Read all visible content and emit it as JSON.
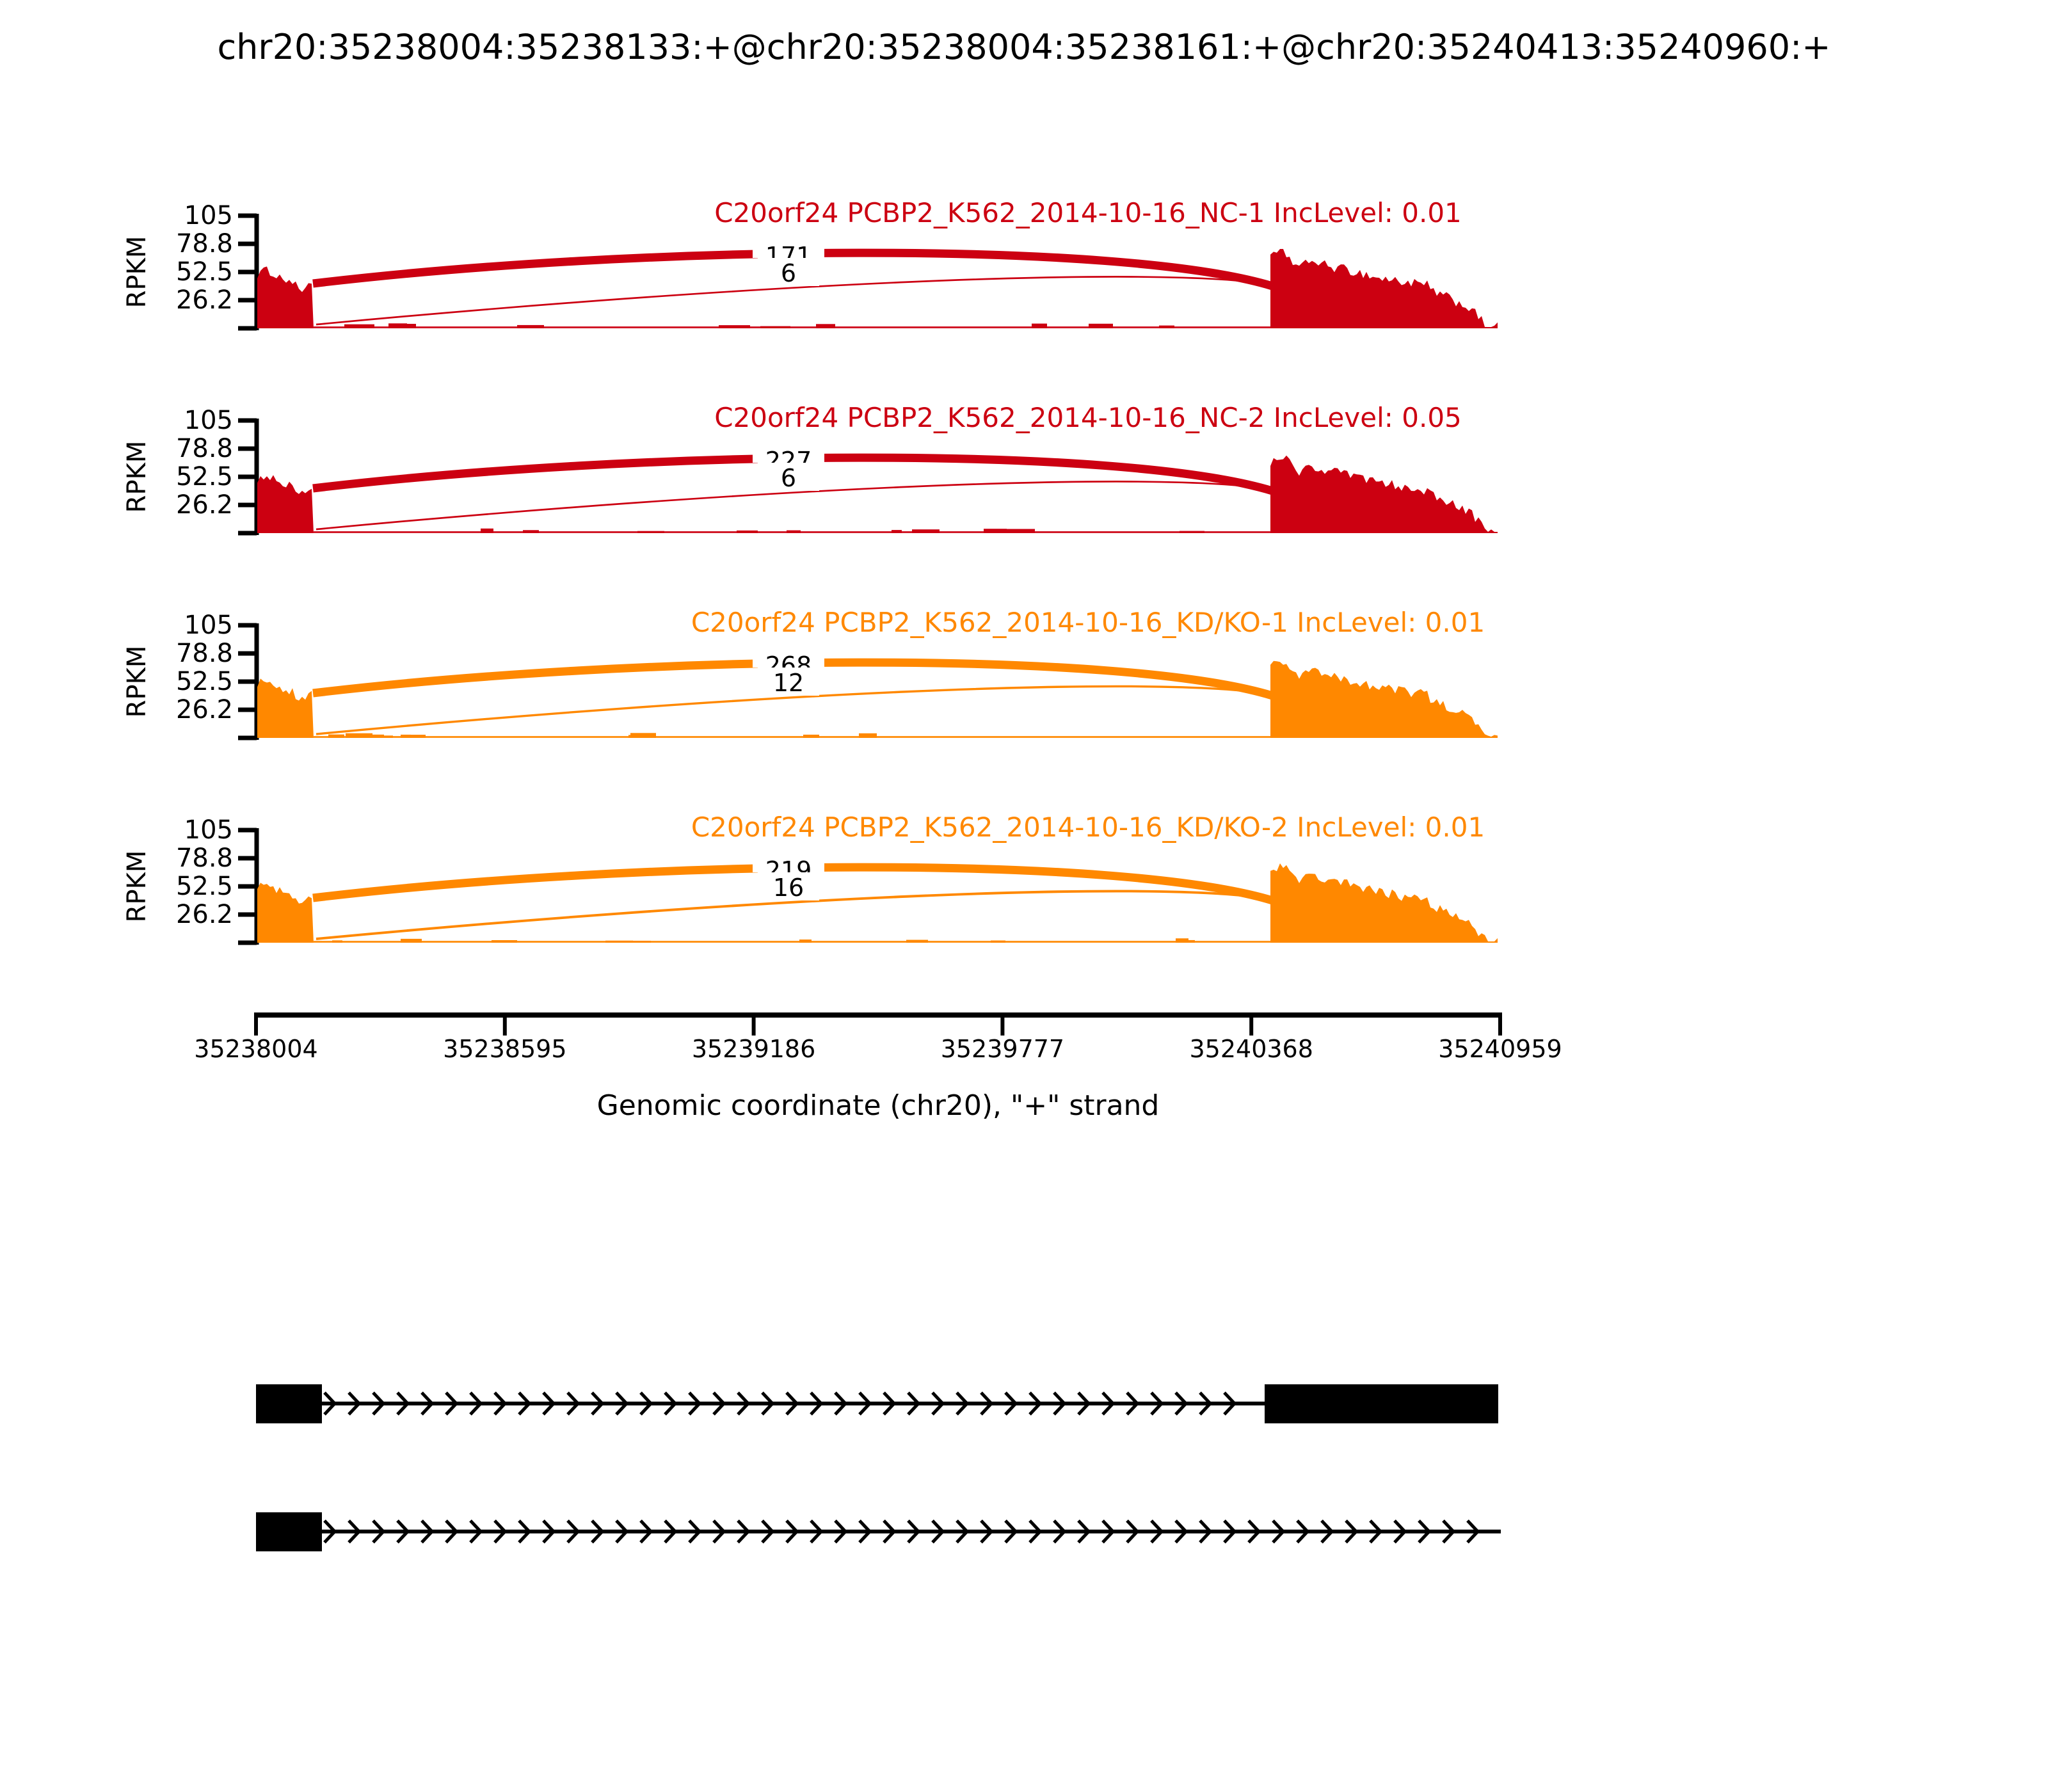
{
  "main_title": "chr20:35238004:35238133:+@chr20:35238004:35238161:+@chr20:35240413:35240960:+",
  "y_axis": {
    "label": "RPKM",
    "ticks": [
      "105",
      "78.8",
      "52.5",
      "26.2"
    ]
  },
  "x_axis": {
    "ticks": [
      "35238004",
      "35238595",
      "35239186",
      "35239777",
      "35240368",
      "35240959"
    ],
    "label": "Genomic coordinate (chr20), \"+\" strand"
  },
  "colors": {
    "nc": "#CC0011",
    "kd": "#FF8800",
    "annotation": "#000000"
  },
  "tracks": [
    {
      "title": "C20orf24 PCBP2_K562_2014-10-16_NC-1 IncLevel: 0.01",
      "color_key": "nc",
      "junction_top": "171",
      "junction_bottom": "6"
    },
    {
      "title": "C20orf24 PCBP2_K562_2014-10-16_NC-2 IncLevel: 0.05",
      "color_key": "nc",
      "junction_top": "227",
      "junction_bottom": "6"
    },
    {
      "title": "C20orf24 PCBP2_K562_2014-10-16_KD/KO-1 IncLevel: 0.01",
      "color_key": "kd",
      "junction_top": "268",
      "junction_bottom": "12"
    },
    {
      "title": "C20orf24 PCBP2_K562_2014-10-16_KD/KO-2 IncLevel: 0.01",
      "color_key": "kd",
      "junction_top": "219",
      "junction_bottom": "16"
    }
  ],
  "transcripts": [
    {
      "exons": [
        [
          35238004,
          35238161
        ],
        [
          35240413,
          35240960
        ]
      ],
      "strand": "+"
    },
    {
      "exons": [
        [
          35238004,
          35238161
        ]
      ],
      "line_to": 35240960,
      "strand": "+"
    }
  ],
  "chart_data": {
    "type": "area",
    "subtype": "sashimi",
    "title": "chr20:35238004:35238133:+@chr20:35238004:35238161:+@chr20:35240413:35240960:+",
    "xlabel": "Genomic coordinate (chr20), \"+\" strand",
    "ylabel": "RPKM",
    "xlim": [
      35238004,
      35240959
    ],
    "ylim": [
      0,
      105
    ],
    "x_ticks": [
      35238004,
      35238595,
      35239186,
      35239777,
      35240368,
      35240959
    ],
    "y_ticks": [
      26.2,
      52.5,
      78.8,
      105
    ],
    "grid": false,
    "legend": null,
    "exon_regions": [
      [
        35238004,
        35238133
      ],
      [
        35240413,
        35240960
      ]
    ],
    "series": [
      {
        "name": "C20orf24 PCBP2_K562_2014-10-16_NC-1",
        "inc_level": 0.01,
        "color": "#CC0011",
        "junction_reads": [
          171,
          6
        ],
        "left_exon_peak_rpkm": 52,
        "right_exon_peak_rpkm": 72
      },
      {
        "name": "C20orf24 PCBP2_K562_2014-10-16_NC-2",
        "inc_level": 0.05,
        "color": "#CC0011",
        "junction_reads": [
          227,
          6
        ],
        "left_exon_peak_rpkm": 52,
        "right_exon_peak_rpkm": 75
      },
      {
        "name": "C20orf24 PCBP2_K562_2014-10-16_KD/KO-1",
        "inc_level": 0.01,
        "color": "#FF8800",
        "junction_reads": [
          268,
          12
        ],
        "left_exon_peak_rpkm": 55,
        "right_exon_peak_rpkm": 78
      },
      {
        "name": "C20orf24 PCBP2_K562_2014-10-16_KD/KO-2",
        "inc_level": 0.01,
        "color": "#FF8800",
        "junction_reads": [
          219,
          16
        ],
        "left_exon_peak_rpkm": 55,
        "right_exon_peak_rpkm": 78
      }
    ]
  }
}
